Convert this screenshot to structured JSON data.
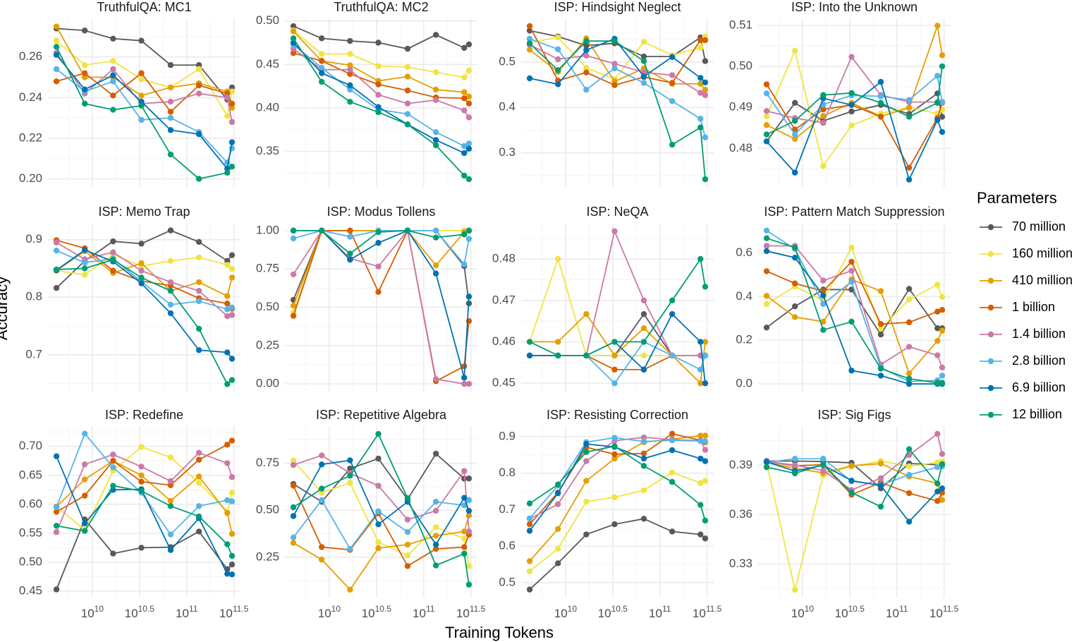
{
  "chart_data": [
    {
      "type": "line",
      "title": "TruthfulQA: MC1",
      "ylim": [
        0.196,
        0.279
      ],
      "yticks": [
        "0.20",
        "0.22",
        "0.24",
        "0.26"
      ],
      "series": [
        [
          0.274,
          0.273,
          0.269,
          0.268,
          0.256,
          0.256,
          0.239,
          0.245
        ],
        [
          0.268,
          0.256,
          0.258,
          0.249,
          0.245,
          0.254,
          0.231,
          0.243
        ],
        [
          0.275,
          0.25,
          0.25,
          0.241,
          0.245,
          0.247,
          0.243,
          0.235
        ],
        [
          0.248,
          0.252,
          0.241,
          0.252,
          0.233,
          0.246,
          0.242,
          0.237
        ],
        [
          0.262,
          0.242,
          0.254,
          0.237,
          0.238,
          0.242,
          0.24,
          0.228
        ],
        [
          0.254,
          0.243,
          0.248,
          0.229,
          0.23,
          0.223,
          0.208,
          0.215
        ],
        [
          0.261,
          0.244,
          0.251,
          0.238,
          0.224,
          0.222,
          0.205,
          0.218
        ],
        [
          0.265,
          0.237,
          0.234,
          0.236,
          0.212,
          0.2,
          0.203,
          0.206
        ]
      ]
    },
    {
      "type": "line",
      "title": "TruthfulQA: MC2",
      "ylim": [
        0.309,
        0.503
      ],
      "yticks": [
        "0.35",
        "0.40",
        "0.45",
        "0.50"
      ],
      "series": [
        [
          0.494,
          0.48,
          0.477,
          0.475,
          0.468,
          0.484,
          0.469,
          0.473
        ],
        [
          0.489,
          0.462,
          0.462,
          0.448,
          0.447,
          0.441,
          0.435,
          0.443
        ],
        [
          0.488,
          0.454,
          0.449,
          0.431,
          0.436,
          0.421,
          0.418,
          0.413
        ],
        [
          0.463,
          0.454,
          0.439,
          0.427,
          0.42,
          0.412,
          0.411,
          0.405
        ],
        [
          0.468,
          0.444,
          0.444,
          0.415,
          0.405,
          0.409,
          0.397,
          0.389
        ],
        [
          0.473,
          0.446,
          0.421,
          0.398,
          0.393,
          0.372,
          0.356,
          0.359
        ],
        [
          0.475,
          0.44,
          0.426,
          0.401,
          0.381,
          0.363,
          0.348,
          0.353
        ],
        [
          0.48,
          0.43,
          0.407,
          0.395,
          0.381,
          0.357,
          0.322,
          0.318
        ]
      ]
    },
    {
      "type": "line",
      "title": "ISP: Hindsight Neglect",
      "ylim": [
        0.225,
        0.596
      ],
      "yticks": [
        "0.3",
        "0.4",
        "0.5"
      ],
      "series": [
        [
          0.569,
          0.556,
          0.536,
          0.541,
          0.512,
          0.512,
          0.554,
          0.502
        ],
        [
          0.543,
          0.554,
          0.487,
          0.462,
          0.544,
          0.515,
          0.531,
          0.556
        ],
        [
          0.527,
          0.478,
          0.552,
          0.457,
          0.486,
          0.452,
          0.452,
          0.439
        ],
        [
          0.579,
          0.459,
          0.477,
          0.449,
          0.467,
          0.454,
          0.548,
          0.548
        ],
        [
          0.538,
          0.506,
          0.514,
          0.496,
          0.477,
          0.471,
          0.432,
          0.427
        ],
        [
          0.551,
          0.528,
          0.439,
          0.486,
          0.454,
          0.414,
          0.375,
          0.334
        ],
        [
          0.464,
          0.451,
          0.526,
          0.551,
          0.468,
          0.511,
          0.465,
          0.455
        ],
        [
          0.541,
          0.482,
          0.546,
          0.546,
          0.502,
          0.318,
          0.356,
          0.242
        ]
      ]
    },
    {
      "type": "line",
      "title": "ISP: Into the Unknown",
      "ylim": [
        0.4706,
        0.5117
      ],
      "yticks": [
        "0.48",
        "0.49",
        "0.50",
        "0.51"
      ],
      "series": [
        [
          0.4817,
          0.4911,
          0.4867,
          0.489,
          0.4906,
          0.4884,
          0.4934,
          0.4877
        ],
        [
          0.4878,
          0.5038,
          0.4757,
          0.4856,
          0.4885,
          0.49,
          0.4885,
          0.4894
        ],
        [
          0.4857,
          0.4823,
          0.4879,
          0.4911,
          0.4878,
          0.4899,
          0.5099,
          0.5027
        ],
        [
          0.4956,
          0.4846,
          0.4895,
          0.4906,
          0.4877,
          0.4753,
          0.4874,
          0.4911
        ],
        [
          0.4891,
          0.4874,
          0.4862,
          0.5023,
          0.493,
          0.4913,
          0.4913,
          0.4913
        ],
        [
          0.4934,
          0.4834,
          0.4907,
          0.4929,
          0.4927,
          0.4918,
          0.4977,
          0.4913
        ],
        [
          0.4817,
          0.4741,
          0.4922,
          0.4906,
          0.4962,
          0.4724,
          0.4869,
          0.484
        ],
        [
          0.4834,
          0.4867,
          0.493,
          0.4935,
          0.4911,
          0.4877,
          0.4911,
          0.5
        ]
      ]
    },
    {
      "type": "line",
      "title": "ISP: Memo Trap",
      "ylim": [
        0.636,
        0.929
      ],
      "yticks": [
        "0.7",
        "0.8",
        "0.9"
      ],
      "series": [
        [
          0.816,
          0.863,
          0.897,
          0.893,
          0.916,
          0.896,
          0.863,
          0.873
        ],
        [
          0.846,
          0.839,
          0.874,
          0.854,
          0.863,
          0.869,
          0.856,
          0.849
        ],
        [
          0.846,
          0.88,
          0.842,
          0.859,
          0.811,
          0.826,
          0.802,
          0.834
        ],
        [
          0.899,
          0.885,
          0.846,
          0.828,
          0.82,
          0.798,
          0.789,
          0.78
        ],
        [
          0.895,
          0.866,
          0.878,
          0.846,
          0.826,
          0.811,
          0.767,
          0.769
        ],
        [
          0.881,
          0.86,
          0.867,
          0.827,
          0.787,
          0.793,
          0.779,
          0.782
        ],
        [
          0.847,
          0.882,
          0.862,
          0.824,
          0.772,
          0.708,
          0.704,
          0.693
        ],
        [
          0.848,
          0.85,
          0.865,
          0.834,
          0.811,
          0.745,
          0.649,
          0.656
        ]
      ]
    },
    {
      "type": "line",
      "title": "ISP: Modus Tollens",
      "ylim": [
        -0.05,
        1.05
      ],
      "yticks": [
        "0.00",
        "0.25",
        "0.50",
        "0.75",
        "1.00"
      ],
      "series": [
        [
          0.548,
          1.0,
          1.0,
          1.0,
          1.0,
          1.0,
          0.769,
          0.525
        ],
        [
          0.467,
          1.0,
          1.0,
          1.0,
          1.0,
          1.0,
          1.0,
          1.0
        ],
        [
          0.51,
          1.0,
          1.0,
          1.0,
          1.0,
          0.773,
          0.99,
          1.0
        ],
        [
          0.444,
          1.0,
          1.0,
          0.6,
          1.0,
          0.018,
          0.115,
          0.41
        ],
        [
          0.715,
          1.0,
          0.819,
          0.766,
          1.0,
          0.031,
          0.0,
          0.0
        ],
        [
          0.949,
          1.0,
          0.96,
          1.0,
          1.0,
          1.0,
          0.78,
          0.946
        ],
        [
          1.0,
          1.0,
          0.81,
          0.92,
          1.0,
          0.72,
          0.04,
          0.57
        ],
        [
          1.0,
          1.0,
          0.85,
          0.99,
          1.0,
          0.955,
          0.975,
          1.0
        ]
      ]
    },
    {
      "type": "line",
      "title": "ISP: NeQA",
      "ylim": [
        0.448,
        0.4887
      ],
      "yticks": [
        "0.45",
        "0.46",
        "0.47",
        "0.48"
      ],
      "series": [
        [
          0.4567,
          0.4567,
          0.4567,
          0.4567,
          0.4667,
          0.4567,
          0.4567,
          0.4567
        ],
        [
          0.46,
          0.48,
          0.4567,
          0.4567,
          0.4567,
          0.4567,
          0.4567,
          0.4567
        ],
        [
          0.46,
          0.46,
          0.4667,
          0.4567,
          0.4633,
          0.4567,
          0.45,
          0.46
        ],
        [
          0.4567,
          0.4567,
          0.4567,
          0.4533,
          0.4533,
          0.4567,
          0.4567,
          0.4567
        ],
        [
          0.4567,
          0.4567,
          0.4567,
          0.4867,
          0.47,
          0.4567,
          0.4567,
          0.4567
        ],
        [
          0.4567,
          0.4567,
          0.4567,
          0.45,
          0.46,
          0.4567,
          0.4533,
          0.4567
        ],
        [
          0.4567,
          0.4567,
          0.4567,
          0.46,
          0.4533,
          0.4667,
          0.46,
          0.45
        ],
        [
          0.46,
          0.4567,
          0.4567,
          0.46,
          0.46,
          0.47,
          0.48,
          0.4733
        ]
      ]
    },
    {
      "type": "line",
      "title": "ISP: Pattern Match Suppression",
      "ylim": [
        -0.035,
        0.737
      ],
      "yticks": [
        "0.0",
        "0.2",
        "0.4",
        "0.6"
      ],
      "series": [
        [
          0.258,
          0.355,
          0.432,
          0.432,
          0.226,
          0.435,
          0.255,
          0.255
        ],
        [
          0.366,
          0.446,
          0.382,
          0.624,
          0.253,
          0.387,
          0.454,
          0.398
        ],
        [
          0.403,
          0.306,
          0.285,
          0.478,
          0.425,
          0.048,
          0.197,
          0.244
        ],
        [
          0.516,
          0.46,
          0.425,
          0.559,
          0.274,
          0.282,
          0.331,
          0.339
        ],
        [
          0.632,
          0.632,
          0.473,
          0.518,
          0.089,
          0.17,
          0.131,
          0.075
        ],
        [
          0.702,
          0.618,
          0.366,
          0.468,
          0.075,
          0.011,
          0.016,
          0.038
        ],
        [
          0.608,
          0.578,
          0.405,
          0.061,
          0.038,
          0.0,
          0.0,
          0.0
        ],
        [
          0.667,
          0.624,
          0.247,
          0.285,
          0.07,
          0.024,
          0.005,
          0.005
        ]
      ]
    },
    {
      "type": "line",
      "title": "ISP: Redefine",
      "ylim": [
        0.439,
        0.735
      ],
      "yticks": [
        "0.45",
        "0.50",
        "0.55",
        "0.60",
        "0.65",
        "0.70"
      ],
      "series": [
        [
          0.453,
          0.574,
          0.515,
          0.525,
          0.526,
          0.553,
          0.488,
          0.496
        ],
        [
          0.596,
          0.556,
          0.658,
          0.699,
          0.681,
          0.637,
          0.587,
          0.62
        ],
        [
          0.596,
          0.643,
          0.675,
          0.65,
          0.606,
          0.648,
          0.585,
          0.549
        ],
        [
          0.587,
          0.615,
          0.675,
          0.639,
          0.633,
          0.677,
          0.703,
          0.71
        ],
        [
          0.552,
          0.669,
          0.686,
          0.665,
          0.64,
          0.689,
          0.671,
          0.647
        ],
        [
          0.595,
          0.722,
          0.664,
          0.62,
          0.548,
          0.597,
          0.607,
          0.605
        ],
        [
          0.683,
          0.567,
          0.625,
          0.626,
          0.521,
          0.576,
          0.48,
          0.479
        ],
        [
          0.563,
          0.554,
          0.632,
          0.623,
          0.597,
          0.579,
          0.531,
          0.511
        ]
      ]
    },
    {
      "type": "line",
      "title": "ISP: Repetitive Algebra",
      "ylim": [
        0.035,
        0.948
      ],
      "yticks": [
        "0.25",
        "0.50",
        "0.75"
      ],
      "series": [
        [
          0.64,
          0.545,
          0.722,
          0.775,
          0.558,
          0.801,
          0.668,
          0.669
        ],
        [
          0.764,
          0.593,
          0.646,
          0.33,
          0.26,
          0.41,
          0.349,
          0.203
        ],
        [
          0.326,
          0.237,
          0.077,
          0.298,
          0.317,
          0.364,
          0.387,
          0.472
        ],
        [
          0.631,
          0.304,
          0.289,
          0.484,
          0.203,
          0.294,
          0.304,
          0.37
        ],
        [
          0.741,
          0.792,
          0.697,
          0.63,
          0.45,
          0.497,
          0.709,
          0.387
        ],
        [
          0.355,
          0.554,
          0.294,
          0.494,
          0.384,
          0.545,
          0.526,
          0.554
        ],
        [
          0.469,
          0.744,
          0.766,
          0.425,
          0.545,
          0.317,
          0.566,
          0.497
        ],
        [
          0.516,
          0.615,
          0.684,
          0.906,
          0.564,
          0.206,
          0.269,
          0.104
        ]
      ]
    },
    {
      "type": "line",
      "title": "ISP: Resisting Correction",
      "ylim": [
        0.459,
        0.929
      ],
      "yticks": [
        "0.5",
        "0.6",
        "0.7",
        "0.8",
        "0.9"
      ],
      "series": [
        [
          0.481,
          0.553,
          0.632,
          0.66,
          0.675,
          0.64,
          0.632,
          0.621
        ],
        [
          0.531,
          0.593,
          0.722,
          0.734,
          0.753,
          0.802,
          0.773,
          0.779
        ],
        [
          0.559,
          0.647,
          0.779,
          0.84,
          0.885,
          0.893,
          0.903,
          0.903
        ],
        [
          0.66,
          0.747,
          0.871,
          0.852,
          0.854,
          0.908,
          0.89,
          0.885
        ],
        [
          0.675,
          0.715,
          0.833,
          0.889,
          0.898,
          0.892,
          0.889,
          0.864
        ],
        [
          0.676,
          0.766,
          0.885,
          0.897,
          0.887,
          0.89,
          0.888,
          0.887
        ],
        [
          0.642,
          0.745,
          0.88,
          0.872,
          0.84,
          0.863,
          0.84,
          0.833
        ],
        [
          0.717,
          0.769,
          0.858,
          0.874,
          0.82,
          0.776,
          0.713,
          0.67
        ]
      ]
    },
    {
      "type": "line",
      "title": "ISP: Sig Figs",
      "ylim": [
        0.3096,
        0.4137
      ],
      "yticks": [
        "0.33",
        "0.36",
        "0.39"
      ],
      "series": [
        [
          0.3925,
          0.3925,
          0.3922,
          0.3914,
          0.3759,
          0.391,
          0.3903,
          0.392
        ],
        [
          0.3917,
          0.3143,
          0.3838,
          0.3893,
          0.3925,
          0.3893,
          0.3917,
          0.3922
        ],
        [
          0.3917,
          0.3881,
          0.3853,
          0.3896,
          0.391,
          0.3831,
          0.379,
          0.3689
        ],
        [
          0.3922,
          0.3896,
          0.3903,
          0.372,
          0.3795,
          0.373,
          0.3682,
          0.3733
        ],
        [
          0.3922,
          0.39,
          0.3867,
          0.3749,
          0.3821,
          0.3961,
          0.409,
          0.3968
        ],
        [
          0.3917,
          0.3939,
          0.3939,
          0.3802,
          0.378,
          0.3841,
          0.3888,
          0.3893
        ],
        [
          0.392,
          0.3864,
          0.39,
          0.3806,
          0.3776,
          0.3557,
          0.374,
          0.3759
        ],
        [
          0.3888,
          0.385,
          0.3903,
          0.3734,
          0.3648,
          0.3997,
          0.3788,
          0.3906
        ]
      ]
    }
  ],
  "x_log10_tokens": [
    9.62,
    9.92,
    10.22,
    10.52,
    10.83,
    11.13,
    11.43,
    11.48
  ],
  "xlim_log10": [
    9.53,
    11.57
  ],
  "xticks": [
    {
      "base": "10",
      "exp": "10",
      "v": 10
    },
    {
      "base": "10",
      "exp": "10.5",
      "v": 10.5
    },
    {
      "base": "10",
      "exp": "11",
      "v": 11
    },
    {
      "base": "10",
      "exp": "11.5",
      "v": 11.5
    }
  ],
  "xlabel": "Training Tokens",
  "ylabel": "Accuracy",
  "x_scale": "log10",
  "grid": true,
  "legend": {
    "title": "Parameters",
    "placement": "right",
    "items": [
      {
        "label": "70 million",
        "color": "#595959"
      },
      {
        "label": "160 million",
        "color": "#F0E442"
      },
      {
        "label": "410 million",
        "color": "#E69F00"
      },
      {
        "label": "1 billion",
        "color": "#D55E00"
      },
      {
        "label": "1.4 billion",
        "color": "#CC79A7"
      },
      {
        "label": "2.8 billion",
        "color": "#56B4E9"
      },
      {
        "label": "6.9 billion",
        "color": "#0072B2"
      },
      {
        "label": "12 billion",
        "color": "#009E73"
      }
    ]
  }
}
